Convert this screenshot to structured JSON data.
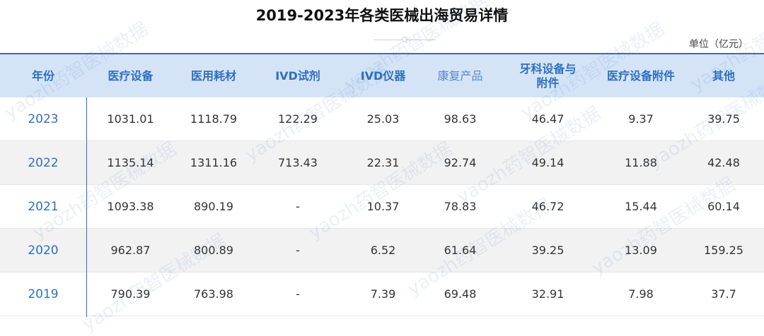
{
  "title": "2019-2023年各类医械出海贸易详情",
  "unit": "单位（亿元）",
  "watermark": "yaozh药智医械数据",
  "chart_data": {
    "type": "table",
    "title": "2019-2023年各类医械出海贸易详情",
    "unit": "单位（亿元）",
    "columns": [
      "年份",
      "医疗设备",
      "医用耗材",
      "IVD试剂",
      "IVD仪器",
      "康复产品",
      "牙科设备与附件",
      "医疗设备附件",
      "其他"
    ],
    "header_lines": [
      [
        "年份"
      ],
      [
        "医疗设备"
      ],
      [
        "医用耗材"
      ],
      [
        "IVD试剂"
      ],
      [
        "IVD仪器"
      ],
      [
        "康复产品"
      ],
      [
        "牙科设备与",
        "附件"
      ],
      [
        "医疗设备附件"
      ],
      [
        "其他"
      ]
    ],
    "rows": [
      [
        "2023",
        "1031.01",
        "1118.79",
        "122.29",
        "25.03",
        "98.63",
        "46.47",
        "9.37",
        "39.75"
      ],
      [
        "2022",
        "1135.14",
        "1311.16",
        "713.43",
        "22.31",
        "92.74",
        "49.14",
        "11.88",
        "42.48"
      ],
      [
        "2021",
        "1093.38",
        "890.19",
        "-",
        "10.37",
        "78.83",
        "46.72",
        "15.44",
        "60.14"
      ],
      [
        "2020",
        "962.87",
        "800.89",
        "-",
        "6.52",
        "61.64",
        "39.25",
        "13.09",
        "159.25"
      ],
      [
        "2019",
        "790.39",
        "763.98",
        "-",
        "7.39",
        "69.48",
        "32.91",
        "7.98",
        "37.7"
      ]
    ]
  },
  "colors": {
    "accent": "#2f6fc0",
    "header_bg": "#d4e4f6",
    "shade_bg": "#f2f2f2"
  }
}
